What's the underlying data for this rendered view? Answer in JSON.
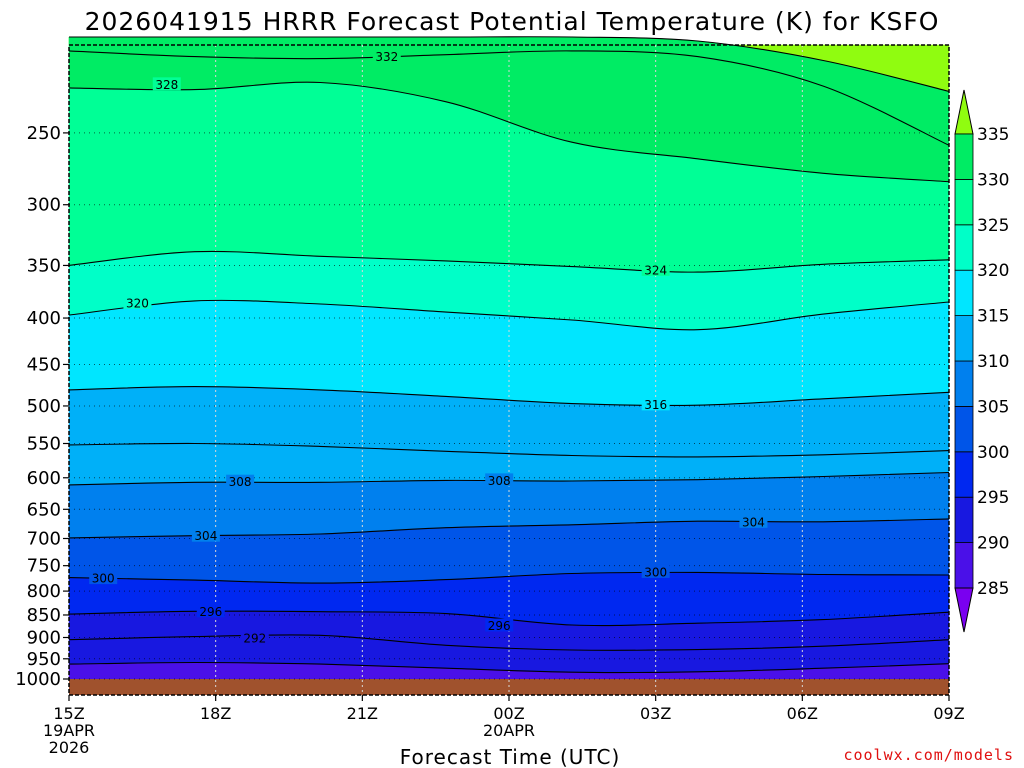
{
  "chart_data": {
    "type": "heatmap",
    "title": "2026041915 HRRR Forecast Potential Temperature (K) for KSFO",
    "xlabel": "Forecast Time (UTC)",
    "x_ticks": [
      "15Z",
      "18Z",
      "21Z",
      "00Z",
      "03Z",
      "06Z",
      "09Z"
    ],
    "x_tick_hours": [
      0,
      3,
      6,
      9,
      12,
      15,
      18
    ],
    "x_date_labels": [
      {
        "hour": 0,
        "line1": "19APR",
        "line2": "2026"
      },
      {
        "hour": 9,
        "line1": "20APR",
        "line2": ""
      }
    ],
    "ylabel": "",
    "y_ticks": [
      250,
      300,
      350,
      400,
      450,
      500,
      550,
      600,
      650,
      700,
      750,
      800,
      850,
      900,
      950,
      1000
    ],
    "ylim_hpa": [
      1000,
      200
    ],
    "y_scale": "log-pressure",
    "xlim_hours": [
      0,
      18
    ],
    "colorbar": {
      "levels": [
        285,
        290,
        295,
        300,
        305,
        310,
        315,
        320,
        325,
        330,
        335
      ],
      "colors": [
        "#7a00f0",
        "#4a10e8",
        "#1818e0",
        "#0028f0",
        "#0055e8",
        "#0080ee",
        "#00b0f8",
        "#00e6ff",
        "#00ffc8",
        "#00ff96",
        "#00ec64",
        "#90fc10"
      ],
      "extend": "both"
    },
    "ground_color": "#a0522d",
    "grid": true,
    "contour_interval": 4,
    "isotherm_pressures_hpa": [
      {
        "theta": 336,
        "p": [
          196,
          196,
          196,
          196,
          196,
          198,
          208,
          225
        ]
      },
      {
        "theta": 332,
        "p": [
          203,
          206,
          207,
          205,
          203,
          206,
          222,
          258
        ]
      },
      {
        "theta": 328,
        "p": [
          223,
          224,
          220,
          231,
          256,
          267,
          277,
          283
        ]
      },
      {
        "theta": 324,
        "p": [
          350,
          338,
          342,
          346,
          351,
          356,
          349,
          345
        ]
      },
      {
        "theta": 320,
        "p": [
          397,
          383,
          386,
          394,
          402,
          412,
          396,
          384
        ]
      },
      {
        "theta": 316,
        "p": [
          480,
          476,
          480,
          488,
          497,
          499,
          491,
          483
        ]
      },
      {
        "theta": 312,
        "p": [
          552,
          550,
          554,
          561,
          567,
          569,
          566,
          560
        ]
      },
      {
        "theta": 308,
        "p": [
          611,
          607,
          607,
          604,
          605,
          603,
          598,
          592
        ]
      },
      {
        "theta": 304,
        "p": [
          699,
          695,
          692,
          681,
          676,
          670,
          671,
          666
        ]
      },
      {
        "theta": 300,
        "p": [
          773,
          778,
          784,
          777,
          765,
          763,
          767,
          768
        ]
      },
      {
        "theta": 296,
        "p": [
          848,
          842,
          843,
          847,
          872,
          868,
          860,
          844
        ]
      },
      {
        "theta": 292,
        "p": [
          905,
          898,
          895,
          918,
          929,
          928,
          920,
          905
        ]
      },
      {
        "theta": 288,
        "p": [
          963,
          959,
          963,
          973,
          983,
          982,
          973,
          962
        ]
      }
    ],
    "contour_labels": [
      {
        "text": "332",
        "hour": 6.5,
        "p": 206
      },
      {
        "text": "328",
        "hour": 2.0,
        "p": 221
      },
      {
        "text": "324",
        "hour": 12.0,
        "p": 354
      },
      {
        "text": "320",
        "hour": 1.4,
        "p": 385
      },
      {
        "text": "316",
        "hour": 12.0,
        "p": 498
      },
      {
        "text": "308",
        "hour": 3.5,
        "p": 606
      },
      {
        "text": "308",
        "hour": 8.8,
        "p": 604
      },
      {
        "text": "304",
        "hour": 2.8,
        "p": 695
      },
      {
        "text": "304",
        "hour": 14.0,
        "p": 671
      },
      {
        "text": "300",
        "hour": 0.7,
        "p": 774
      },
      {
        "text": "300",
        "hour": 12.0,
        "p": 762
      },
      {
        "text": "296",
        "hour": 2.9,
        "p": 842
      },
      {
        "text": "296",
        "hour": 8.8,
        "p": 873
      },
      {
        "text": "292",
        "hour": 3.8,
        "p": 901
      }
    ]
  },
  "credit": "coolwx.com/models",
  "credit_color": "#e01010"
}
